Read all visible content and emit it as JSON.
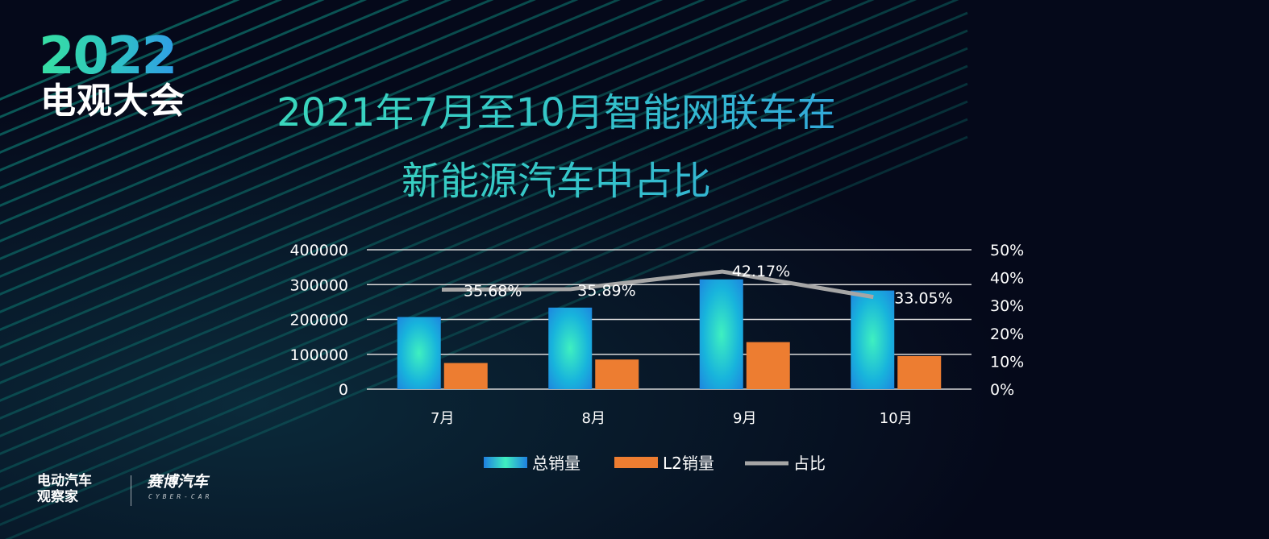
{
  "logo": {
    "year": "2022",
    "event": "电观大会"
  },
  "title_line1": "2021年7月至10月智能网联车在",
  "title_line2": "新能源汽车中占比",
  "brands": {
    "brand1_line1": "电动汽车",
    "brand1_line2": "观察家",
    "brand2": "赛博汽车",
    "brand2_sub": "CYBER-CAR"
  },
  "chart_data": {
    "type": "bar",
    "categories": [
      "7月",
      "8月",
      "9月",
      "10月"
    ],
    "series": [
      {
        "name": "总销量",
        "type": "bar",
        "axis": "left",
        "values": [
          207000,
          234000,
          315000,
          283000
        ],
        "color": "#1aa9e6"
      },
      {
        "name": "L2销量",
        "type": "bar",
        "axis": "left",
        "values": [
          75000,
          85000,
          135000,
          95000
        ],
        "color": "#ed7d31"
      },
      {
        "name": "占比",
        "type": "line",
        "axis": "right",
        "values": [
          35.68,
          35.89,
          42.17,
          33.05
        ],
        "labels": [
          "35.68%",
          "35.89%",
          "42.17%",
          "33.05%"
        ],
        "color": "#a6a6a6"
      }
    ],
    "y_left": {
      "min": 0,
      "max": 400000,
      "ticks": [
        "0",
        "100000",
        "200000",
        "300000",
        "400000"
      ]
    },
    "y_right": {
      "min": 0,
      "max": 50,
      "ticks": [
        "0%",
        "10%",
        "20%",
        "30%",
        "40%",
        "50%"
      ]
    },
    "grid": true,
    "legend": "bottom"
  }
}
